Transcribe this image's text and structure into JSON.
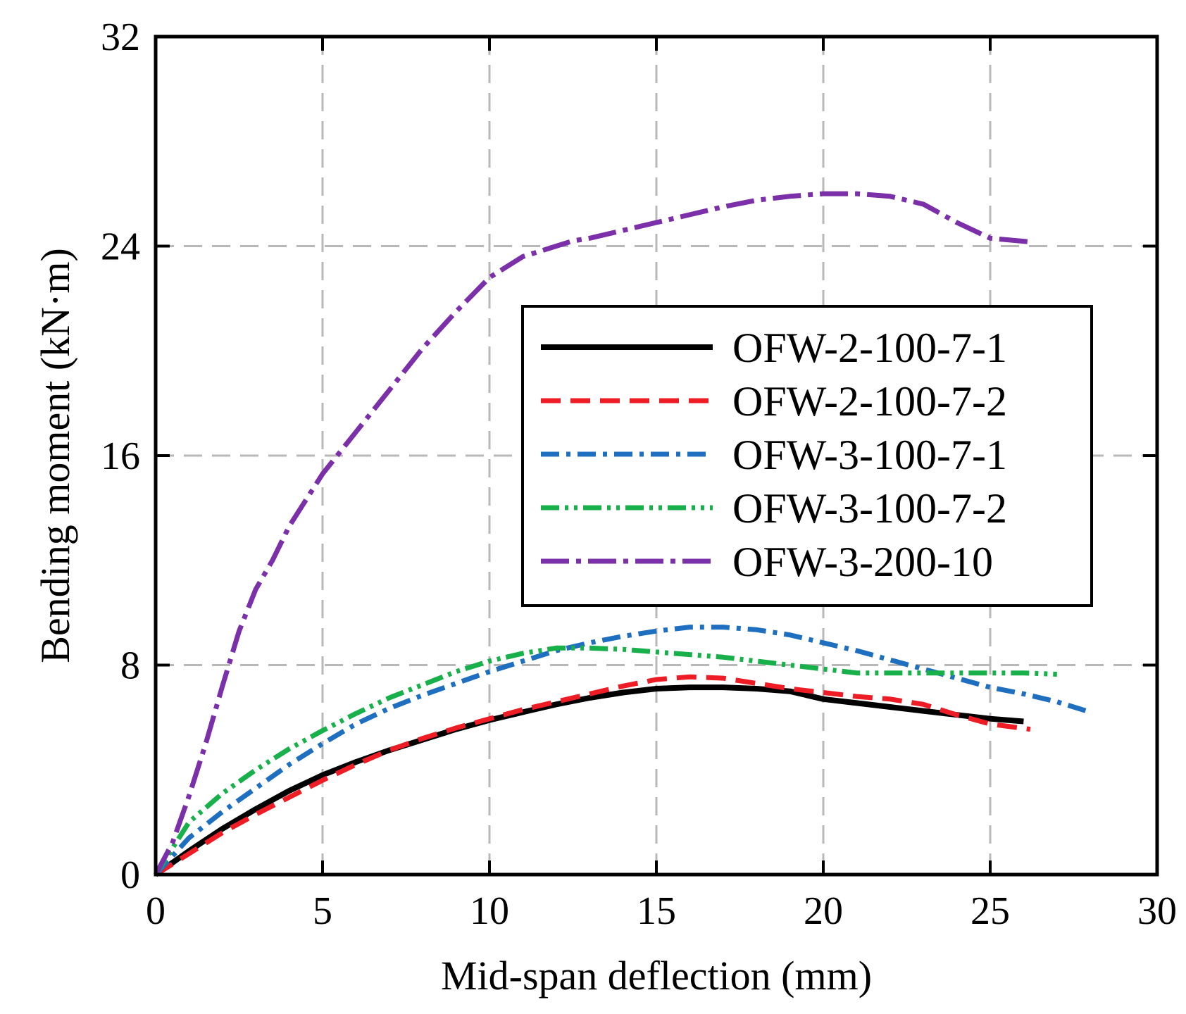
{
  "chart_data": {
    "type": "line",
    "xlabel": "Mid-span deflection (mm)",
    "ylabel": "Bending moment (kN·m)",
    "xlim": [
      0,
      30
    ],
    "ylim": [
      0,
      32
    ],
    "xticks": [
      "0",
      "5",
      "10",
      "15",
      "20",
      "25",
      "30"
    ],
    "yticks": [
      "0",
      "8",
      "16",
      "24",
      "32"
    ],
    "grid": true,
    "legend_position": "center-right",
    "series": [
      {
        "name": "OFW-2-100-7-1",
        "color": "#000000",
        "line_style": "solid",
        "x": [
          0,
          1,
          2,
          3,
          4,
          5,
          6,
          7,
          8,
          9,
          10,
          11,
          12,
          13,
          14,
          15,
          16,
          17,
          18,
          19,
          20,
          21,
          22,
          23,
          24,
          25,
          26
        ],
        "y": [
          0,
          0.9,
          1.75,
          2.5,
          3.2,
          3.8,
          4.3,
          4.75,
          5.15,
          5.55,
          5.9,
          6.2,
          6.5,
          6.75,
          6.95,
          7.1,
          7.15,
          7.15,
          7.1,
          7.0,
          6.7,
          6.55,
          6.4,
          6.25,
          6.1,
          5.95,
          5.85
        ]
      },
      {
        "name": "OFW-2-100-7-2",
        "color": "#ee1c25",
        "line_style": "dash",
        "x": [
          0,
          1,
          2,
          3,
          4,
          5,
          6,
          7,
          8,
          9,
          10,
          11,
          12,
          13,
          14,
          15,
          16,
          17,
          18,
          19,
          20,
          21,
          22,
          23,
          24,
          25,
          26.2
        ],
        "y": [
          0,
          0.8,
          1.6,
          2.3,
          2.95,
          3.6,
          4.2,
          4.75,
          5.2,
          5.6,
          5.95,
          6.3,
          6.6,
          6.9,
          7.2,
          7.45,
          7.55,
          7.5,
          7.3,
          7.1,
          6.95,
          6.8,
          6.7,
          6.5,
          6.1,
          5.75,
          5.55
        ]
      },
      {
        "name": "OFW-3-100-7-1",
        "color": "#1f6fc0",
        "line_style": "dash-dot",
        "x": [
          0,
          1,
          2,
          3,
          4,
          5,
          6,
          7,
          8,
          9,
          10,
          11,
          12,
          13,
          14,
          15,
          16,
          17,
          18,
          19,
          20,
          21,
          22,
          23,
          24,
          25,
          26,
          27,
          28
        ],
        "y": [
          0,
          1.4,
          2.4,
          3.3,
          4.2,
          5.0,
          5.75,
          6.35,
          6.85,
          7.3,
          7.75,
          8.15,
          8.55,
          8.85,
          9.1,
          9.3,
          9.45,
          9.45,
          9.35,
          9.15,
          8.85,
          8.55,
          8.2,
          7.85,
          7.5,
          7.15,
          6.9,
          6.6,
          6.2
        ]
      },
      {
        "name": "OFW-3-100-7-2",
        "color": "#18b04a",
        "line_style": "dash-dot-dot",
        "x": [
          0,
          1,
          2,
          3,
          4,
          5,
          6,
          7,
          8,
          9,
          10,
          11,
          12,
          13,
          14,
          15,
          16,
          17,
          18,
          19,
          20,
          21,
          22,
          23,
          24,
          25,
          26,
          27
        ],
        "y": [
          0,
          2.0,
          3.1,
          4.0,
          4.8,
          5.5,
          6.15,
          6.75,
          7.25,
          7.75,
          8.15,
          8.45,
          8.65,
          8.65,
          8.6,
          8.5,
          8.4,
          8.3,
          8.15,
          8.0,
          7.85,
          7.7,
          7.7,
          7.7,
          7.7,
          7.7,
          7.7,
          7.65
        ]
      },
      {
        "name": "OFW-3-200-10",
        "color": "#7b2fa8",
        "line_style": "long-dash-dot",
        "x": [
          0,
          0.5,
          1,
          1.5,
          2,
          2.5,
          3,
          3.5,
          4,
          5,
          6,
          7,
          8,
          9,
          10,
          11,
          12,
          12.5,
          13,
          14,
          15,
          16,
          17,
          18,
          19,
          20,
          21,
          22,
          23,
          24,
          25,
          26.3
        ],
        "y": [
          0,
          1.2,
          3.0,
          5.0,
          7.2,
          9.3,
          10.9,
          12.0,
          13.3,
          15.3,
          16.9,
          18.5,
          20.1,
          21.5,
          22.8,
          23.6,
          24.0,
          24.2,
          24.3,
          24.6,
          24.9,
          25.2,
          25.5,
          25.75,
          25.9,
          26.0,
          26.0,
          25.9,
          25.6,
          24.9,
          24.3,
          24.15
        ]
      }
    ]
  }
}
